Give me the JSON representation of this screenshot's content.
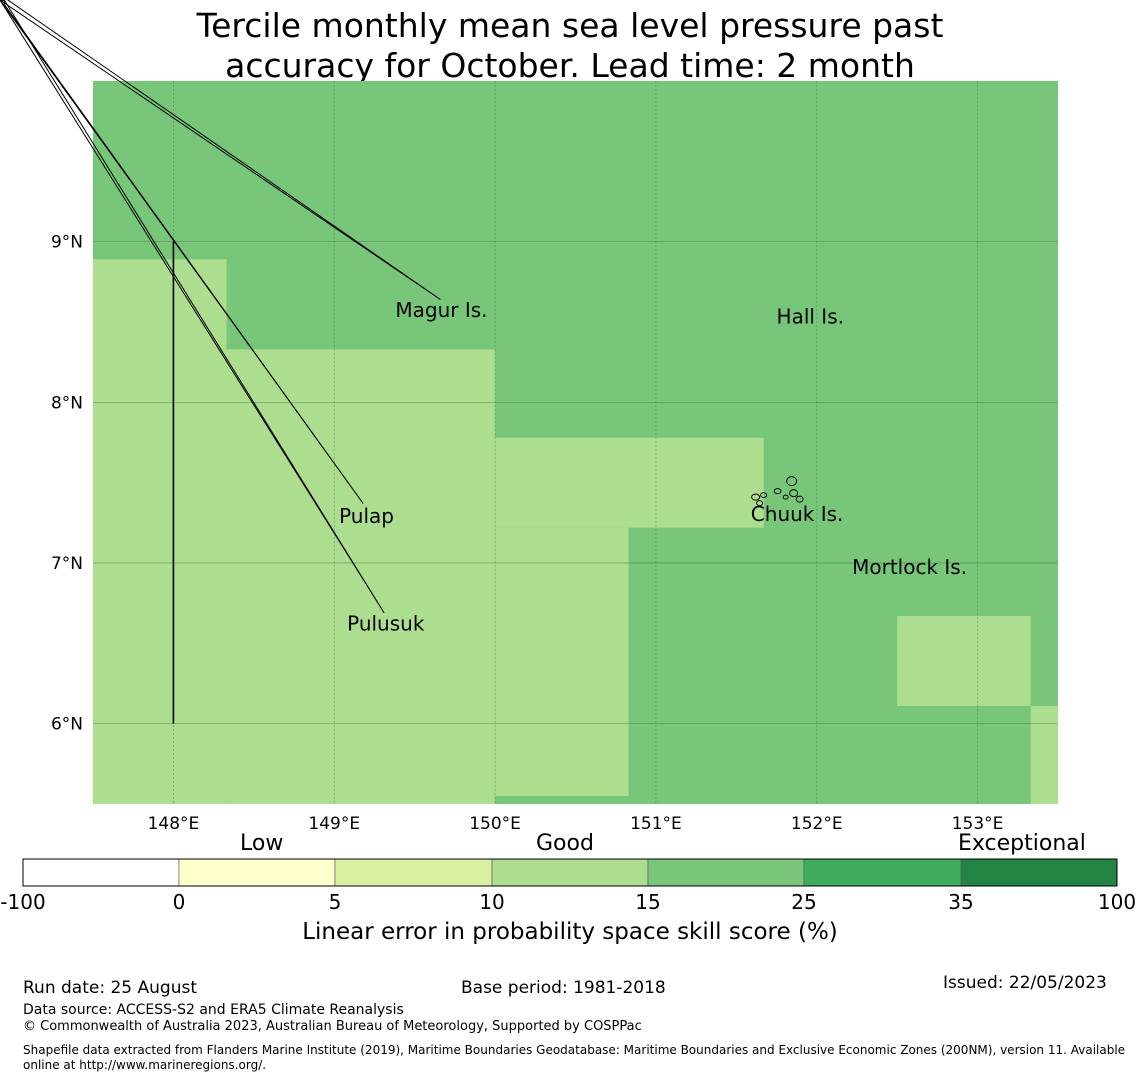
{
  "title": {
    "line1": "Tercile monthly mean sea level pressure past",
    "line2": "accuracy for October. Lead time: 2 month"
  },
  "map": {
    "lon_range": [
      147.5,
      153.5
    ],
    "lat_range": [
      5.5,
      10.0
    ],
    "lon_ticks": [
      {
        "value": 148,
        "label": "148°E"
      },
      {
        "value": 149,
        "label": "149°E"
      },
      {
        "value": 150,
        "label": "150°E"
      },
      {
        "value": 151,
        "label": "151°E"
      },
      {
        "value": 152,
        "label": "152°E"
      },
      {
        "value": 153,
        "label": "153°E"
      }
    ],
    "lat_ticks": [
      {
        "value": 9,
        "label": "9°N"
      },
      {
        "value": 8,
        "label": "8°N"
      },
      {
        "value": 7,
        "label": "7°N"
      },
      {
        "value": 6,
        "label": "6°N"
      }
    ],
    "skill_cells_good": [
      {
        "lon0": 147.5,
        "lon1": 148.33,
        "lat0": 5.5,
        "lat1": 8.89
      },
      {
        "lon0": 148.33,
        "lon1": 150.0,
        "lat0": 5.5,
        "lat1": 8.33
      },
      {
        "lon0": 150.0,
        "lon1": 151.67,
        "lat0": 7.22,
        "lat1": 7.78
      },
      {
        "lon0": 150.0,
        "lon1": 150.83,
        "lat0": 5.55,
        "lat1": 7.22
      },
      {
        "lon0": 152.5,
        "lon1": 153.33,
        "lat0": 6.11,
        "lat1": 6.67
      },
      {
        "lon0": 153.33,
        "lon1": 153.5,
        "lat0": 5.5,
        "lat1": 6.11
      }
    ],
    "boundary_line": {
      "lon": 148.0,
      "lat0": 6.0,
      "lat1": 9.0
    },
    "islands": [
      {
        "name": "Magur Is.",
        "lon": 149.38,
        "lat": 8.53
      },
      {
        "name": "Hall Is.",
        "lon": 151.75,
        "lat": 8.49
      },
      {
        "name": "Pulap",
        "lon": 149.03,
        "lat": 7.25
      },
      {
        "name": "Chuuk Is.",
        "lon": 151.59,
        "lat": 7.26
      },
      {
        "name": "Mortlock Is.",
        "lon": 152.22,
        "lat": 6.93
      },
      {
        "name": "Pulusuk",
        "lon": 149.08,
        "lat": 6.58
      }
    ]
  },
  "colors": {
    "cat_minus100_0": "#ffffff",
    "cat_0_5": "#ffffcc",
    "cat_5_10": "#d9f0a3",
    "cat_10_15": "#addd8e",
    "cat_15_25": "#78c679",
    "cat_25_35": "#41ab5d",
    "cat_35_100": "#238443"
  },
  "colorbar": {
    "categories": [
      {
        "from": -100,
        "to": 0,
        "color": "#ffffff"
      },
      {
        "from": 0,
        "to": 5,
        "color": "#ffffcc"
      },
      {
        "from": 5,
        "to": 10,
        "color": "#d9f0a3"
      },
      {
        "from": 10,
        "to": 15,
        "color": "#addd8e"
      },
      {
        "from": 15,
        "to": 25,
        "color": "#78c679"
      },
      {
        "from": 25,
        "to": 35,
        "color": "#41ab5d"
      },
      {
        "from": 35,
        "to": 100,
        "color": "#238443"
      }
    ],
    "tick_labels": [
      "-100",
      "0",
      "5",
      "10",
      "15",
      "25",
      "35",
      "100"
    ],
    "group_labels": {
      "low": "Low",
      "good": "Good",
      "exceptional": "Exceptional"
    },
    "axis_label": "Linear error in probability space skill score (%)"
  },
  "footer": {
    "run_date": "Run date: 25 August",
    "base_period": "Base period: 1981-2018",
    "issued": "Issued: 22/05/2023",
    "data_source": "Data source: ACCESS-S2 and ERA5 Climate Reanalysis",
    "copyright": "© Commonwealth of Australia 2023, Australian Bureau of Meteorology, Supported by COSPPac",
    "shapefile_line1": "Shapefile data extracted from Flanders Marine Institute (2019), Maritime Boundaries Geodatabase: Maritime Boundaries and Exclusive Economic Zones (200NM), version 11. Available",
    "shapefile_line2": "online at http://www.marineregions.org/."
  }
}
